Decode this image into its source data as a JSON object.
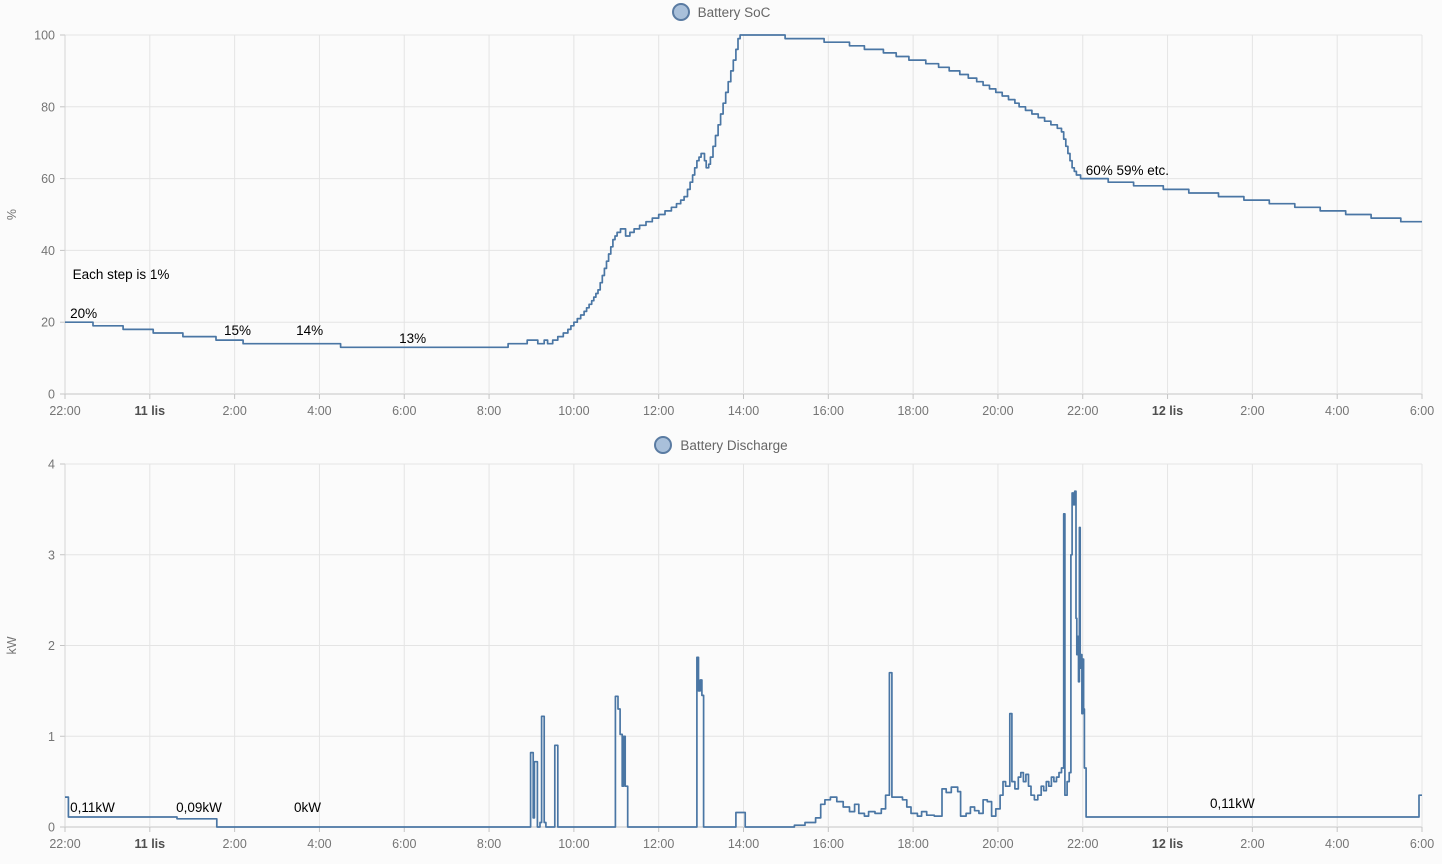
{
  "colors": {
    "line": "#4a76a4",
    "legend_fill": "#a9c0da",
    "legend_border": "#5a7ba2",
    "legend_text": "#666666",
    "grid": "#e4e4e4",
    "axis_line": "#d4d4d4",
    "tick_mark": "#c4c4c4",
    "tick_label": "#757575",
    "day_label": "#4f4f4f",
    "annotation": "#000000",
    "background": "#fbfbfb"
  },
  "x_axis": {
    "span_hours": 32,
    "ticks": [
      {
        "label": "22:00",
        "t": 0,
        "bold": false
      },
      {
        "label": "11 lis",
        "t": 2,
        "bold": true
      },
      {
        "label": "2:00",
        "t": 4,
        "bold": false
      },
      {
        "label": "4:00",
        "t": 6,
        "bold": false
      },
      {
        "label": "6:00",
        "t": 8,
        "bold": false
      },
      {
        "label": "8:00",
        "t": 10,
        "bold": false
      },
      {
        "label": "10:00",
        "t": 12,
        "bold": false
      },
      {
        "label": "12:00",
        "t": 14,
        "bold": false
      },
      {
        "label": "14:00",
        "t": 16,
        "bold": false
      },
      {
        "label": "16:00",
        "t": 18,
        "bold": false
      },
      {
        "label": "18:00",
        "t": 20,
        "bold": false
      },
      {
        "label": "20:00",
        "t": 22,
        "bold": false
      },
      {
        "label": "22:00",
        "t": 24,
        "bold": false
      },
      {
        "label": "12 lis",
        "t": 26,
        "bold": true
      },
      {
        "label": "2:00",
        "t": 28,
        "bold": false
      },
      {
        "label": "4:00",
        "t": 30,
        "bold": false
      },
      {
        "label": "6:00",
        "t": 32,
        "bold": false
      }
    ]
  },
  "chart_data": [
    {
      "type": "line",
      "title": "Battery SoC",
      "ylabel": "%",
      "ylim": [
        0,
        100
      ],
      "y_ticks": [
        0,
        20,
        40,
        60,
        80,
        100
      ],
      "step": true,
      "annotations": [
        {
          "text": "Each step is 1%",
          "t": 0.18,
          "value": 32
        },
        {
          "text": "20%",
          "t": 0.12,
          "value": 21.2
        },
        {
          "text": "15%",
          "t": 3.75,
          "value": 16.4
        },
        {
          "text": "14%",
          "t": 5.45,
          "value": 16.4
        },
        {
          "text": "13%",
          "t": 7.88,
          "value": 14.2
        },
        {
          "text": "60% 59% etc.",
          "t": 24.07,
          "value": 61
        }
      ],
      "series": [
        {
          "name": "Battery SoC",
          "points": [
            [
              0,
              20
            ],
            [
              0.66,
              19
            ],
            [
              1.37,
              18
            ],
            [
              2.08,
              17
            ],
            [
              2.78,
              16
            ],
            [
              3.56,
              15
            ],
            [
              4.2,
              14
            ],
            [
              6.5,
              13
            ],
            [
              10.45,
              14
            ],
            [
              10.9,
              15
            ],
            [
              11.15,
              14
            ],
            [
              11.3,
              15
            ],
            [
              11.38,
              14
            ],
            [
              11.5,
              15
            ],
            [
              11.62,
              16
            ],
            [
              11.75,
              17
            ],
            [
              11.86,
              18
            ],
            [
              11.93,
              19
            ],
            [
              12.0,
              20
            ],
            [
              12.08,
              21
            ],
            [
              12.16,
              22
            ],
            [
              12.24,
              23
            ],
            [
              12.3,
              24
            ],
            [
              12.36,
              25
            ],
            [
              12.42,
              26
            ],
            [
              12.47,
              27
            ],
            [
              12.52,
              28
            ],
            [
              12.57,
              29
            ],
            [
              12.62,
              31
            ],
            [
              12.67,
              33
            ],
            [
              12.72,
              35
            ],
            [
              12.77,
              37
            ],
            [
              12.82,
              39
            ],
            [
              12.87,
              41
            ],
            [
              12.92,
              43
            ],
            [
              12.97,
              44
            ],
            [
              13.02,
              45
            ],
            [
              13.1,
              46
            ],
            [
              13.22,
              44
            ],
            [
              13.32,
              45
            ],
            [
              13.42,
              46
            ],
            [
              13.55,
              47
            ],
            [
              13.7,
              48
            ],
            [
              13.85,
              49
            ],
            [
              14.0,
              50
            ],
            [
              14.15,
              51
            ],
            [
              14.3,
              52
            ],
            [
              14.42,
              53
            ],
            [
              14.52,
              54
            ],
            [
              14.6,
              55
            ],
            [
              14.68,
              57
            ],
            [
              14.74,
              59
            ],
            [
              14.8,
              61
            ],
            [
              14.85,
              63
            ],
            [
              14.9,
              65
            ],
            [
              14.95,
              66
            ],
            [
              15.0,
              67
            ],
            [
              15.08,
              65
            ],
            [
              15.12,
              63
            ],
            [
              15.18,
              64
            ],
            [
              15.22,
              66
            ],
            [
              15.28,
              69
            ],
            [
              15.34,
              72
            ],
            [
              15.4,
              75
            ],
            [
              15.46,
              78
            ],
            [
              15.52,
              81
            ],
            [
              15.58,
              84
            ],
            [
              15.64,
              87
            ],
            [
              15.7,
              90
            ],
            [
              15.76,
              93
            ],
            [
              15.82,
              96
            ],
            [
              15.87,
              99
            ],
            [
              15.92,
              100
            ],
            [
              16.98,
              99
            ],
            [
              17.9,
              98
            ],
            [
              18.5,
              97
            ],
            [
              18.85,
              96
            ],
            [
              19.3,
              95
            ],
            [
              19.6,
              94
            ],
            [
              19.9,
              93
            ],
            [
              20.3,
              92
            ],
            [
              20.6,
              91
            ],
            [
              20.85,
              90
            ],
            [
              21.1,
              89
            ],
            [
              21.3,
              88
            ],
            [
              21.5,
              87
            ],
            [
              21.65,
              86
            ],
            [
              21.8,
              85
            ],
            [
              21.95,
              84
            ],
            [
              22.1,
              83
            ],
            [
              22.25,
              82
            ],
            [
              22.4,
              81
            ],
            [
              22.5,
              80
            ],
            [
              22.65,
              79
            ],
            [
              22.8,
              78
            ],
            [
              22.95,
              77
            ],
            [
              23.1,
              76
            ],
            [
              23.25,
              75
            ],
            [
              23.4,
              74
            ],
            [
              23.5,
              73
            ],
            [
              23.55,
              71
            ],
            [
              23.6,
              69
            ],
            [
              23.65,
              67
            ],
            [
              23.7,
              65
            ],
            [
              23.75,
              63
            ],
            [
              23.8,
              62
            ],
            [
              23.85,
              61
            ],
            [
              23.95,
              60
            ],
            [
              24.6,
              59
            ],
            [
              25.2,
              58
            ],
            [
              25.9,
              57
            ],
            [
              26.5,
              56
            ],
            [
              27.2,
              55
            ],
            [
              27.8,
              54
            ],
            [
              28.4,
              53
            ],
            [
              29.0,
              52
            ],
            [
              29.6,
              51
            ],
            [
              30.2,
              50
            ],
            [
              30.8,
              49
            ],
            [
              31.5,
              48
            ],
            [
              32,
              48
            ]
          ]
        }
      ]
    },
    {
      "type": "line",
      "title": "Battery Discharge",
      "ylabel": "kW",
      "ylim": [
        0,
        4
      ],
      "y_ticks": [
        0,
        1,
        2,
        3,
        4
      ],
      "step": true,
      "annotations": [
        {
          "text": "0,11kW",
          "t": 0.12,
          "value": 0.165
        },
        {
          "text": "0,09kW",
          "t": 2.62,
          "value": 0.165
        },
        {
          "text": "0kW",
          "t": 5.4,
          "value": 0.165
        },
        {
          "text": "0,11kW",
          "t": 27.0,
          "value": 0.21
        }
      ],
      "series": [
        {
          "name": "Battery Discharge",
          "points": [
            [
              0,
              0.33
            ],
            [
              0.08,
              0.11
            ],
            [
              2.64,
              0.09
            ],
            [
              3.58,
              0
            ],
            [
              10.98,
              0.82
            ],
            [
              11.04,
              0.1
            ],
            [
              11.07,
              0.72
            ],
            [
              11.14,
              0
            ],
            [
              11.2,
              0.05
            ],
            [
              11.24,
              1.22
            ],
            [
              11.3,
              0.05
            ],
            [
              11.34,
              0
            ],
            [
              11.55,
              0.9
            ],
            [
              11.62,
              0
            ],
            [
              12.98,
              1.44
            ],
            [
              13.04,
              1.3
            ],
            [
              13.09,
              1.02
            ],
            [
              13.14,
              0.45
            ],
            [
              13.17,
              1.0
            ],
            [
              13.21,
              0.45
            ],
            [
              13.27,
              0
            ],
            [
              14.9,
              1.87
            ],
            [
              14.94,
              1.5
            ],
            [
              14.98,
              1.62
            ],
            [
              15.02,
              1.45
            ],
            [
              15.06,
              0
            ],
            [
              15.82,
              0.16
            ],
            [
              16.04,
              0
            ],
            [
              17.2,
              0.02
            ],
            [
              17.45,
              0.05
            ],
            [
              17.7,
              0.1
            ],
            [
              17.82,
              0.25
            ],
            [
              17.92,
              0.3
            ],
            [
              18.05,
              0.33
            ],
            [
              18.2,
              0.28
            ],
            [
              18.35,
              0.22
            ],
            [
              18.5,
              0.17
            ],
            [
              18.62,
              0.25
            ],
            [
              18.72,
              0.15
            ],
            [
              18.85,
              0.12
            ],
            [
              18.95,
              0.17
            ],
            [
              19.1,
              0.15
            ],
            [
              19.25,
              0.2
            ],
            [
              19.35,
              0.35
            ],
            [
              19.44,
              1.7
            ],
            [
              19.5,
              0.33
            ],
            [
              19.75,
              0.3
            ],
            [
              19.85,
              0.22
            ],
            [
              19.95,
              0.15
            ],
            [
              20.1,
              0.12
            ],
            [
              20.2,
              0.17
            ],
            [
              20.32,
              0.13
            ],
            [
              20.5,
              0.12
            ],
            [
              20.68,
              0.42
            ],
            [
              20.78,
              0.38
            ],
            [
              20.9,
              0.44
            ],
            [
              21.05,
              0.39
            ],
            [
              21.12,
              0.12
            ],
            [
              21.25,
              0.15
            ],
            [
              21.35,
              0.22
            ],
            [
              21.45,
              0.18
            ],
            [
              21.55,
              0.15
            ],
            [
              21.65,
              0.3
            ],
            [
              21.75,
              0.28
            ],
            [
              21.85,
              0.12
            ],
            [
              21.95,
              0.2
            ],
            [
              22.05,
              0.35
            ],
            [
              22.12,
              0.5
            ],
            [
              22.18,
              0.45
            ],
            [
              22.28,
              1.25
            ],
            [
              22.33,
              0.5
            ],
            [
              22.4,
              0.42
            ],
            [
              22.48,
              0.55
            ],
            [
              22.54,
              0.6
            ],
            [
              22.6,
              0.5
            ],
            [
              22.66,
              0.58
            ],
            [
              22.72,
              0.45
            ],
            [
              22.78,
              0.35
            ],
            [
              22.86,
              0.3
            ],
            [
              22.94,
              0.35
            ],
            [
              23.02,
              0.45
            ],
            [
              23.08,
              0.4
            ],
            [
              23.14,
              0.5
            ],
            [
              23.2,
              0.45
            ],
            [
              23.26,
              0.55
            ],
            [
              23.32,
              0.5
            ],
            [
              23.38,
              0.55
            ],
            [
              23.44,
              0.6
            ],
            [
              23.5,
              0.65
            ],
            [
              23.55,
              3.45
            ],
            [
              23.58,
              0.35
            ],
            [
              23.63,
              0.5
            ],
            [
              23.68,
              0.6
            ],
            [
              23.72,
              3.0
            ],
            [
              23.75,
              3.68
            ],
            [
              23.78,
              3.55
            ],
            [
              23.81,
              3.7
            ],
            [
              23.84,
              2.3
            ],
            [
              23.86,
              1.9
            ],
            [
              23.88,
              2.1
            ],
            [
              23.9,
              1.6
            ],
            [
              23.92,
              3.3
            ],
            [
              23.94,
              1.75
            ],
            [
              23.96,
              1.9
            ],
            [
              23.98,
              1.25
            ],
            [
              24.0,
              1.85
            ],
            [
              24.02,
              1.3
            ],
            [
              24.04,
              0.65
            ],
            [
              24.08,
              0.11
            ],
            [
              31.9,
              0.11
            ],
            [
              31.93,
              0.35
            ],
            [
              32,
              0.35
            ]
          ]
        }
      ]
    }
  ]
}
